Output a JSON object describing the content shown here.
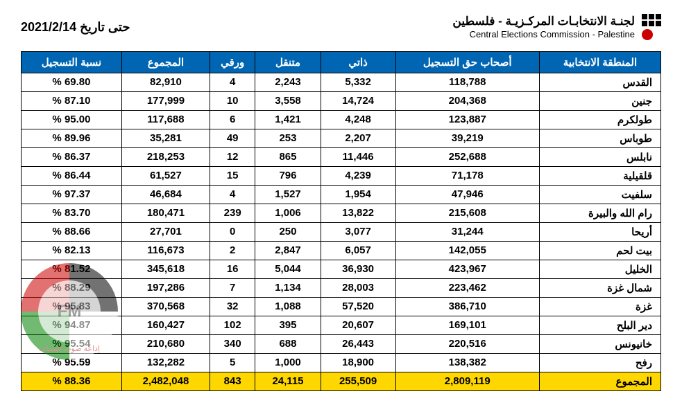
{
  "header": {
    "date_title": "حتى تاريخ 2021/2/14",
    "org_ar": "لجنـة الانتخابـات المركـزيـة - فلسطين",
    "org_en": "Central Elections Commission - Palestine"
  },
  "table": {
    "columns": [
      "المنطقة الانتخابية",
      "أصحاب حق التسجيل",
      "ذاتي",
      "متنقل",
      "ورقي",
      "المجموع",
      "نسبة التسجيل"
    ],
    "rows": [
      {
        "region": "القدس",
        "eligible": "118,788",
        "self": "5,332",
        "mobile": "2,243",
        "paper": "4",
        "total": "82,910",
        "pct": "69.80 %"
      },
      {
        "region": "جنين",
        "eligible": "204,368",
        "self": "14,724",
        "mobile": "3,558",
        "paper": "10",
        "total": "177,999",
        "pct": "87.10 %"
      },
      {
        "region": "طولكرم",
        "eligible": "123,887",
        "self": "4,248",
        "mobile": "1,421",
        "paper": "6",
        "total": "117,688",
        "pct": "95.00 %"
      },
      {
        "region": "طوباس",
        "eligible": "39,219",
        "self": "2,207",
        "mobile": "253",
        "paper": "49",
        "total": "35,281",
        "pct": "89.96 %"
      },
      {
        "region": "نابلس",
        "eligible": "252,688",
        "self": "11,446",
        "mobile": "865",
        "paper": "12",
        "total": "218,253",
        "pct": "86.37 %"
      },
      {
        "region": "قلقيلية",
        "eligible": "71,178",
        "self": "4,239",
        "mobile": "796",
        "paper": "15",
        "total": "61,527",
        "pct": "86.44 %"
      },
      {
        "region": "سلفيت",
        "eligible": "47,946",
        "self": "1,954",
        "mobile": "1,527",
        "paper": "4",
        "total": "46,684",
        "pct": "97.37 %"
      },
      {
        "region": "رام الله والبيرة",
        "eligible": "215,608",
        "self": "13,822",
        "mobile": "1,006",
        "paper": "239",
        "total": "180,471",
        "pct": "83.70 %"
      },
      {
        "region": "أريحا",
        "eligible": "31,244",
        "self": "3,077",
        "mobile": "250",
        "paper": "0",
        "total": "27,701",
        "pct": "88.66 %"
      },
      {
        "region": "بيت لحم",
        "eligible": "142,055",
        "self": "6,057",
        "mobile": "2,847",
        "paper": "2",
        "total": "116,673",
        "pct": "82.13 %"
      },
      {
        "region": "الخليل",
        "eligible": "423,967",
        "self": "36,930",
        "mobile": "5,044",
        "paper": "16",
        "total": "345,618",
        "pct": "81.52 %"
      },
      {
        "region": "شمال غزة",
        "eligible": "223,462",
        "self": "28,003",
        "mobile": "1,134",
        "paper": "7",
        "total": "197,286",
        "pct": "88.29 %"
      },
      {
        "region": "غزة",
        "eligible": "386,710",
        "self": "57,520",
        "mobile": "1,088",
        "paper": "32",
        "total": "370,568",
        "pct": "95.83 %"
      },
      {
        "region": "دير البلح",
        "eligible": "169,101",
        "self": "20,607",
        "mobile": "395",
        "paper": "102",
        "total": "160,427",
        "pct": "94.87 %"
      },
      {
        "region": "خانيونس",
        "eligible": "220,516",
        "self": "26,443",
        "mobile": "688",
        "paper": "340",
        "total": "210,680",
        "pct": "95.54 %"
      },
      {
        "region": "رفح",
        "eligible": "138,382",
        "self": "18,900",
        "mobile": "1,000",
        "paper": "5",
        "total": "132,282",
        "pct": "95.59 %"
      }
    ],
    "total_row": {
      "region": "المجموع",
      "eligible": "2,809,119",
      "self": "255,509",
      "mobile": "24,115",
      "paper": "843",
      "total": "2,482,048",
      "pct": "88.36 %"
    }
  },
  "watermark": {
    "fm": "FM",
    "ar": "إذاعة صوت الشباب"
  },
  "colors": {
    "header_bg": "#0066b3",
    "header_fg": "#ffffff",
    "total_bg": "#ffd700",
    "border": "#000000",
    "logo_dot": "#cc0000"
  }
}
